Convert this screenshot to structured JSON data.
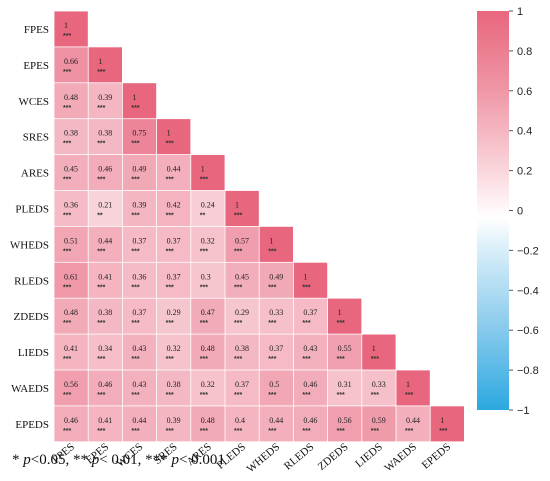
{
  "chart_data": {
    "type": "heatmap",
    "variables": [
      "FPES",
      "EPES",
      "WCES",
      "SRES",
      "ARES",
      "PLEDS",
      "WHEDS",
      "RLEDS",
      "ZDEDS",
      "LIEDS",
      "WAEDS",
      "EPEDS"
    ],
    "matrix": [
      [
        "1"
      ],
      [
        "0.66",
        "1"
      ],
      [
        "0.48",
        "0.39",
        "1"
      ],
      [
        "0.38",
        "0.38",
        "0.75",
        "1"
      ],
      [
        "0.45",
        "0.46",
        "0.49",
        "0.44",
        "1"
      ],
      [
        "0.36",
        "0.21",
        "0.39",
        "0.42",
        "0.24",
        "1"
      ],
      [
        "0.51",
        "0.44",
        "0.37",
        "0.37",
        "0.32",
        "0.57",
        "1"
      ],
      [
        "0.61",
        "0.41",
        "0.36",
        "0.37",
        "0.3",
        "0.45",
        "0.49",
        "1"
      ],
      [
        "0.48",
        "0.38",
        "0.37",
        "0.29",
        "0.47",
        "0.29",
        "0.33",
        "0.37",
        "1"
      ],
      [
        "0.41",
        "0.34",
        "0.43",
        "0.32",
        "0.48",
        "0.38",
        "0.37",
        "0.43",
        "0.55",
        "1"
      ],
      [
        "0.56",
        "0.46",
        "0.43",
        "0.38",
        "0.32",
        "0.37",
        "0.5",
        "0.46",
        "0.31",
        "0.33",
        "1"
      ],
      [
        "0.46",
        "0.41",
        "0.44",
        "0.39",
        "0.48",
        "0.4",
        "0.44",
        "0.46",
        "0.56",
        "0.59",
        "0.44",
        "1"
      ]
    ],
    "significance": [
      [
        "***"
      ],
      [
        "***",
        "***"
      ],
      [
        "***",
        "***",
        "***"
      ],
      [
        "***",
        "***",
        "***",
        "***"
      ],
      [
        "***",
        "***",
        "***",
        "***",
        "***"
      ],
      [
        "***",
        "**",
        "***",
        "***",
        "**",
        "***"
      ],
      [
        "***",
        "***",
        "***",
        "***",
        "***",
        "***",
        "***"
      ],
      [
        "***",
        "***",
        "***",
        "***",
        "***",
        "***",
        "***",
        "***"
      ],
      [
        "***",
        "***",
        "***",
        "***",
        "***",
        "***",
        "***",
        "***",
        "***"
      ],
      [
        "***",
        "***",
        "***",
        "***",
        "***",
        "***",
        "***",
        "***",
        "***",
        "***"
      ],
      [
        "***",
        "***",
        "***",
        "***",
        "***",
        "***",
        "***",
        "***",
        "***",
        "***",
        "***"
      ],
      [
        "***",
        "***",
        "***",
        "***",
        "***",
        "***",
        "***",
        "***",
        "***",
        "***",
        "***",
        "***"
      ]
    ],
    "colorbar": {
      "ticks": [
        "1",
        "0.8",
        "0.6",
        "0.4",
        "0.2",
        "0",
        "−0.2",
        "−0.4",
        "−0.6",
        "−0.8",
        "−1"
      ],
      "range": [
        -1,
        1
      ],
      "low_color": "#2ba9e0",
      "mid_color": "#ffffff",
      "high_color": "#e8667e"
    }
  },
  "footnote": {
    "p1_lead": "* ",
    "p1_p": "p",
    "p1_rest": "<0.05, ** ",
    "p2_p": "p",
    "p2_rest": "< 0.01, *** ",
    "p3_p": "p",
    "p3_rest": "< 0.001"
  }
}
